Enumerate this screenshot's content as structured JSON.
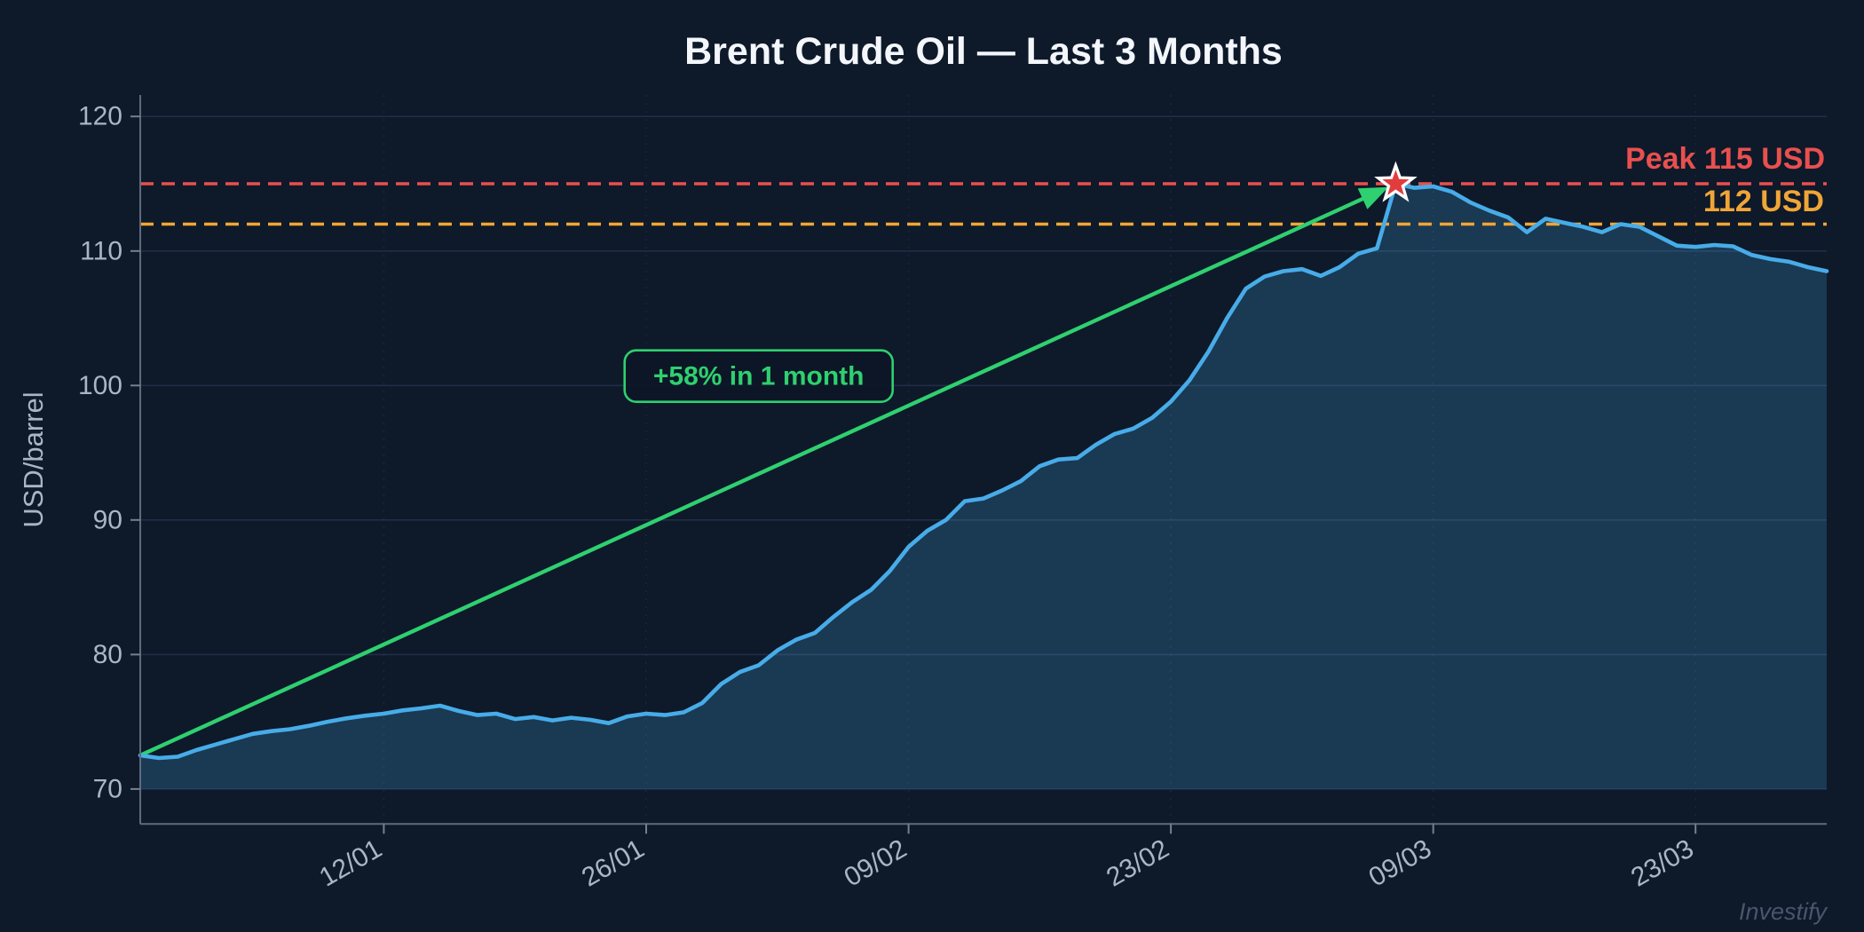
{
  "meta": {
    "app": "chart-figure",
    "watermark": "Investify"
  },
  "colors": {
    "background": "#0e192a",
    "line": "#47ace8",
    "fill": "rgba(71,172,232,0.22)",
    "green": "#2fd06f",
    "red": "#e8504e",
    "orange": "#f0a636",
    "grid_horizontal": "rgba(125,160,215,0.16)",
    "grid_vertical": "rgba(125,160,215,0.10)",
    "spine": "#5f6b7d",
    "tick": "#74808f",
    "tick_label": "#a9b6c6",
    "title": "#f3f6fa",
    "star_fill": "#e23c3c",
    "star_edge": "#ffffff",
    "watermark": "#48566b"
  },
  "chart_data": {
    "type": "area",
    "title": "Brent Crude Oil — Last 3 Months",
    "xlabel": "",
    "ylabel": "USD/barrel",
    "x_unit": "daily points, day index 0–90 (30/12 to 30/03)",
    "x_start_date": "30/12",
    "x_end_date": "30/03",
    "values": [
      72.5,
      72.3,
      72.4,
      72.9,
      73.3,
      73.7,
      74.1,
      74.3,
      74.45,
      74.7,
      75.0,
      75.25,
      75.45,
      75.6,
      75.85,
      76.0,
      76.2,
      75.8,
      75.5,
      75.6,
      75.2,
      75.35,
      75.1,
      75.3,
      75.15,
      74.9,
      75.4,
      75.6,
      75.5,
      75.7,
      76.4,
      77.8,
      78.7,
      79.2,
      80.3,
      81.1,
      81.6,
      82.8,
      83.9,
      84.8,
      86.2,
      88.0,
      89.2,
      90.0,
      91.4,
      91.6,
      92.2,
      92.9,
      94.0,
      94.5,
      94.6,
      95.6,
      96.4,
      96.8,
      97.6,
      98.8,
      100.4,
      102.5,
      105.0,
      107.2,
      108.1,
      108.5,
      108.65,
      108.15,
      108.8,
      109.8,
      110.2,
      115.0,
      114.7,
      114.8,
      114.4,
      113.6,
      113.0,
      112.5,
      111.4,
      112.4,
      112.1,
      111.8,
      111.4,
      112.0,
      111.8,
      111.1,
      110.4,
      110.3,
      110.45,
      110.35,
      109.7,
      109.4,
      109.2,
      108.8,
      108.5
    ],
    "x_tick_indices": [
      13,
      27,
      41,
      55,
      69,
      83
    ],
    "x_tick_labels": [
      "12/01",
      "26/01",
      "09/02",
      "23/02",
      "09/03",
      "23/03"
    ],
    "y_ticks": [
      70,
      80,
      90,
      100,
      110,
      120
    ],
    "ylim": [
      67.4,
      121.6
    ],
    "fill_baseline": 70,
    "grid": {
      "horizontal": "solid faint",
      "vertical": "dotted faint at date ticks"
    },
    "legend": "none",
    "reference_lines": [
      {
        "value": 115,
        "label": "Peak 115 USD",
        "color": "#e8504e",
        "style": "dashed"
      },
      {
        "value": 112,
        "label": "112 USD",
        "color": "#f0a636",
        "style": "dashed"
      }
    ],
    "annotations": {
      "trend_arrow": {
        "from_index": 0,
        "from_value": 72.5,
        "to_index": 67,
        "to_value": 115.0,
        "color": "#2fd06f"
      },
      "callout": {
        "text": "+58% in 1 month",
        "x_index": 33,
        "value": 100.7
      },
      "peak_marker": {
        "index": 67,
        "value": 115.0,
        "shape": "star",
        "date": "07/03"
      }
    }
  }
}
